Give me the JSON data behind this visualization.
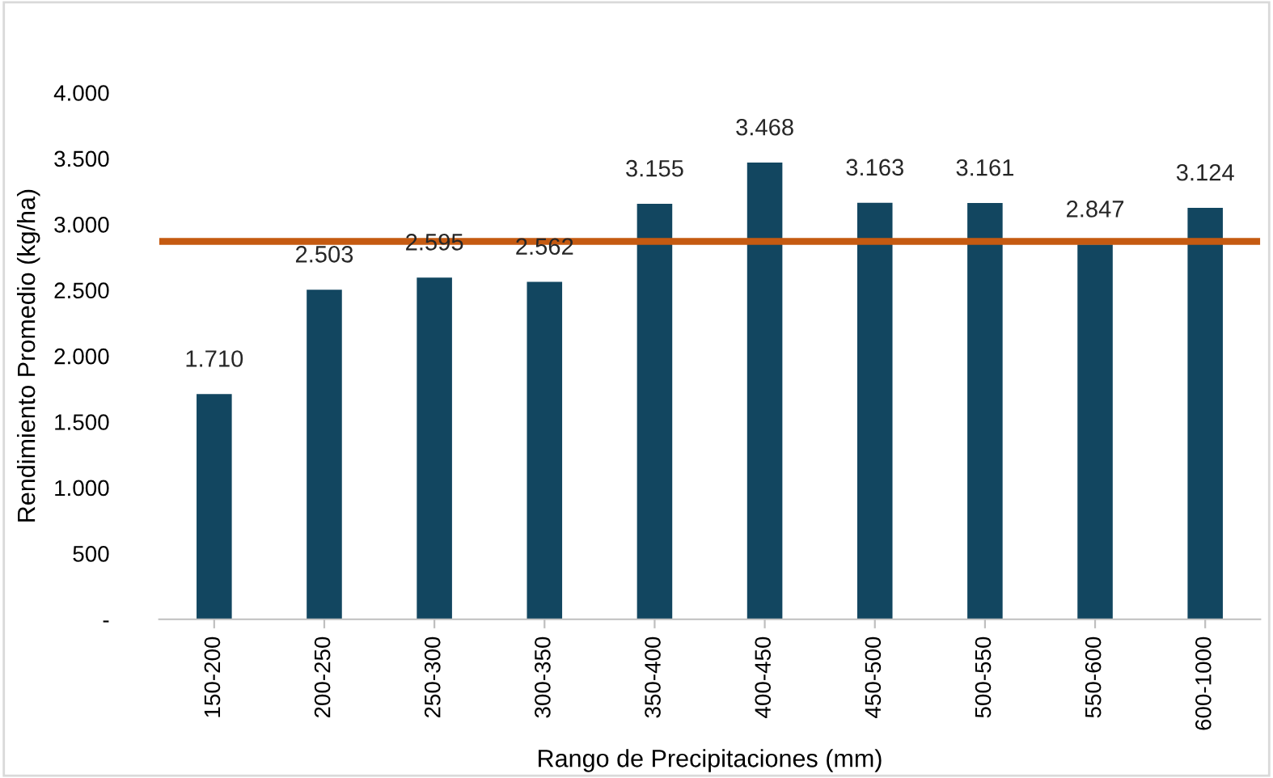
{
  "chart_data": {
    "type": "bar",
    "xlabel": "Rango de Precipitaciones (mm)",
    "ylabel": "Rendimiento Promedio (kg/ha)",
    "categories": [
      "150-200",
      "200-250",
      "250-300",
      "300-350",
      "350-400",
      "400-450",
      "450-500",
      "500-550",
      "550-600",
      "600-1000"
    ],
    "values": [
      1710,
      2503,
      2595,
      2562,
      3155,
      3468,
      3163,
      3161,
      2847,
      3124
    ],
    "value_labels": [
      "1.710",
      "2.503",
      "2.595",
      "2.562",
      "3.155",
      "3.468",
      "3.163",
      "3.161",
      "2.847",
      "3.124"
    ],
    "color": "#124660",
    "ylim": [
      0,
      4000
    ],
    "yticks": [
      {
        "value": 0,
        "label": "-"
      },
      500,
      {
        "value": 1000,
        "label": "1.000"
      },
      {
        "value": 1500,
        "label": "1.500"
      },
      {
        "value": 2000,
        "label": "2.000"
      },
      {
        "value": 2500,
        "label": "2.500"
      },
      {
        "value": 3000,
        "label": "3.000"
      },
      {
        "value": 3500,
        "label": "3.500"
      },
      {
        "value": 4000,
        "label": "4.000"
      }
    ],
    "ref_lines": [
      {
        "axis": "y",
        "value": 2870,
        "color": "#c55a11",
        "line_style": "solid"
      }
    ],
    "grid": false,
    "legend": false
  }
}
